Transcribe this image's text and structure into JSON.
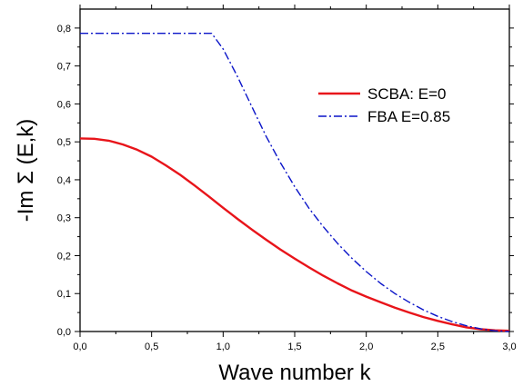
{
  "chart_data": {
    "type": "line",
    "xlabel": "Wave number k",
    "ylabel": "-Im Σ (E,k)",
    "xlim": [
      0,
      3
    ],
    "ylim": [
      0,
      0.85
    ],
    "xticks": [
      0,
      0.5,
      1.0,
      1.5,
      2.0,
      2.5,
      3.0
    ],
    "xtick_labels": [
      "0,0",
      "0,5",
      "1,0",
      "1,5",
      "2,0",
      "2,5",
      "3,0"
    ],
    "yticks": [
      0,
      0.1,
      0.2,
      0.3,
      0.4,
      0.5,
      0.6,
      0.7,
      0.8
    ],
    "ytick_labels": [
      "0,0",
      "0,1",
      "0,2",
      "0,3",
      "0,4",
      "0,5",
      "0,6",
      "0,7",
      "0,8"
    ],
    "grid": false,
    "legend_position": "top-right",
    "series": [
      {
        "name": "SCBA: E=0",
        "color": "#e8141a",
        "style": "solid",
        "x": [
          0,
          0.1,
          0.2,
          0.3,
          0.4,
          0.5,
          0.6,
          0.7,
          0.8,
          0.9,
          1.0,
          1.1,
          1.2,
          1.3,
          1.4,
          1.5,
          1.6,
          1.7,
          1.8,
          1.9,
          2.0,
          2.1,
          2.2,
          2.3,
          2.4,
          2.5,
          2.6,
          2.7,
          2.8,
          2.9,
          3.0
        ],
        "y": [
          0.509,
          0.508,
          0.503,
          0.493,
          0.479,
          0.461,
          0.438,
          0.413,
          0.385,
          0.356,
          0.326,
          0.297,
          0.269,
          0.242,
          0.216,
          0.192,
          0.169,
          0.147,
          0.127,
          0.108,
          0.092,
          0.077,
          0.063,
          0.05,
          0.038,
          0.028,
          0.019,
          0.011,
          0.006,
          0.003,
          0.002
        ]
      },
      {
        "name": "FBA E=0.85",
        "color": "#0a14c8",
        "style": "dash-dot",
        "x": [
          0,
          0.2,
          0.4,
          0.6,
          0.8,
          0.92,
          1.0,
          1.1,
          1.2,
          1.3,
          1.4,
          1.5,
          1.6,
          1.7,
          1.8,
          1.9,
          2.0,
          2.1,
          2.2,
          2.3,
          2.4,
          2.5,
          2.6,
          2.7,
          2.8,
          2.9,
          3.0
        ],
        "y": [
          0.786,
          0.786,
          0.786,
          0.786,
          0.786,
          0.786,
          0.745,
          0.672,
          0.593,
          0.515,
          0.445,
          0.382,
          0.325,
          0.276,
          0.232,
          0.193,
          0.158,
          0.127,
          0.1,
          0.077,
          0.057,
          0.04,
          0.026,
          0.015,
          0.007,
          0.002,
          0.0
        ]
      }
    ]
  }
}
